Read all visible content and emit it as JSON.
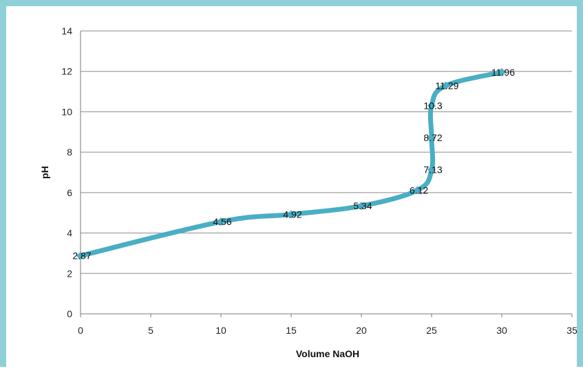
{
  "chart_data": {
    "type": "line",
    "title": "",
    "xlabel": "Volume NaOH",
    "ylabel": "pH",
    "xlim": [
      0,
      35
    ],
    "ylim": [
      0,
      14
    ],
    "x_ticks": [
      "0",
      "5",
      "10",
      "15",
      "20",
      "25",
      "30",
      "35"
    ],
    "y_ticks": [
      "0",
      "2",
      "4",
      "6",
      "8",
      "10",
      "12",
      "14"
    ],
    "grid": "horizontal",
    "legend": "none",
    "line_color": "#4aaec4",
    "series": [
      {
        "points": [
          {
            "x": 0,
            "y": 2.87,
            "label": "2.87"
          },
          {
            "x": 10,
            "y": 4.56,
            "label": "4.56"
          },
          {
            "x": 15,
            "y": 4.92,
            "label": "4.92"
          },
          {
            "x": 20,
            "y": 5.34,
            "label": "5.34"
          },
          {
            "x": 24,
            "y": 6.12,
            "label": "6.12"
          },
          {
            "x": 25,
            "y": 7.13,
            "label": "7.13"
          },
          {
            "x": 25,
            "y": 8.72,
            "label": "8.72"
          },
          {
            "x": 25,
            "y": 10.3,
            "label": "10.3"
          },
          {
            "x": 26,
            "y": 11.29,
            "label": "11.29"
          },
          {
            "x": 30,
            "y": 11.96,
            "label": "11.96"
          }
        ]
      }
    ]
  }
}
